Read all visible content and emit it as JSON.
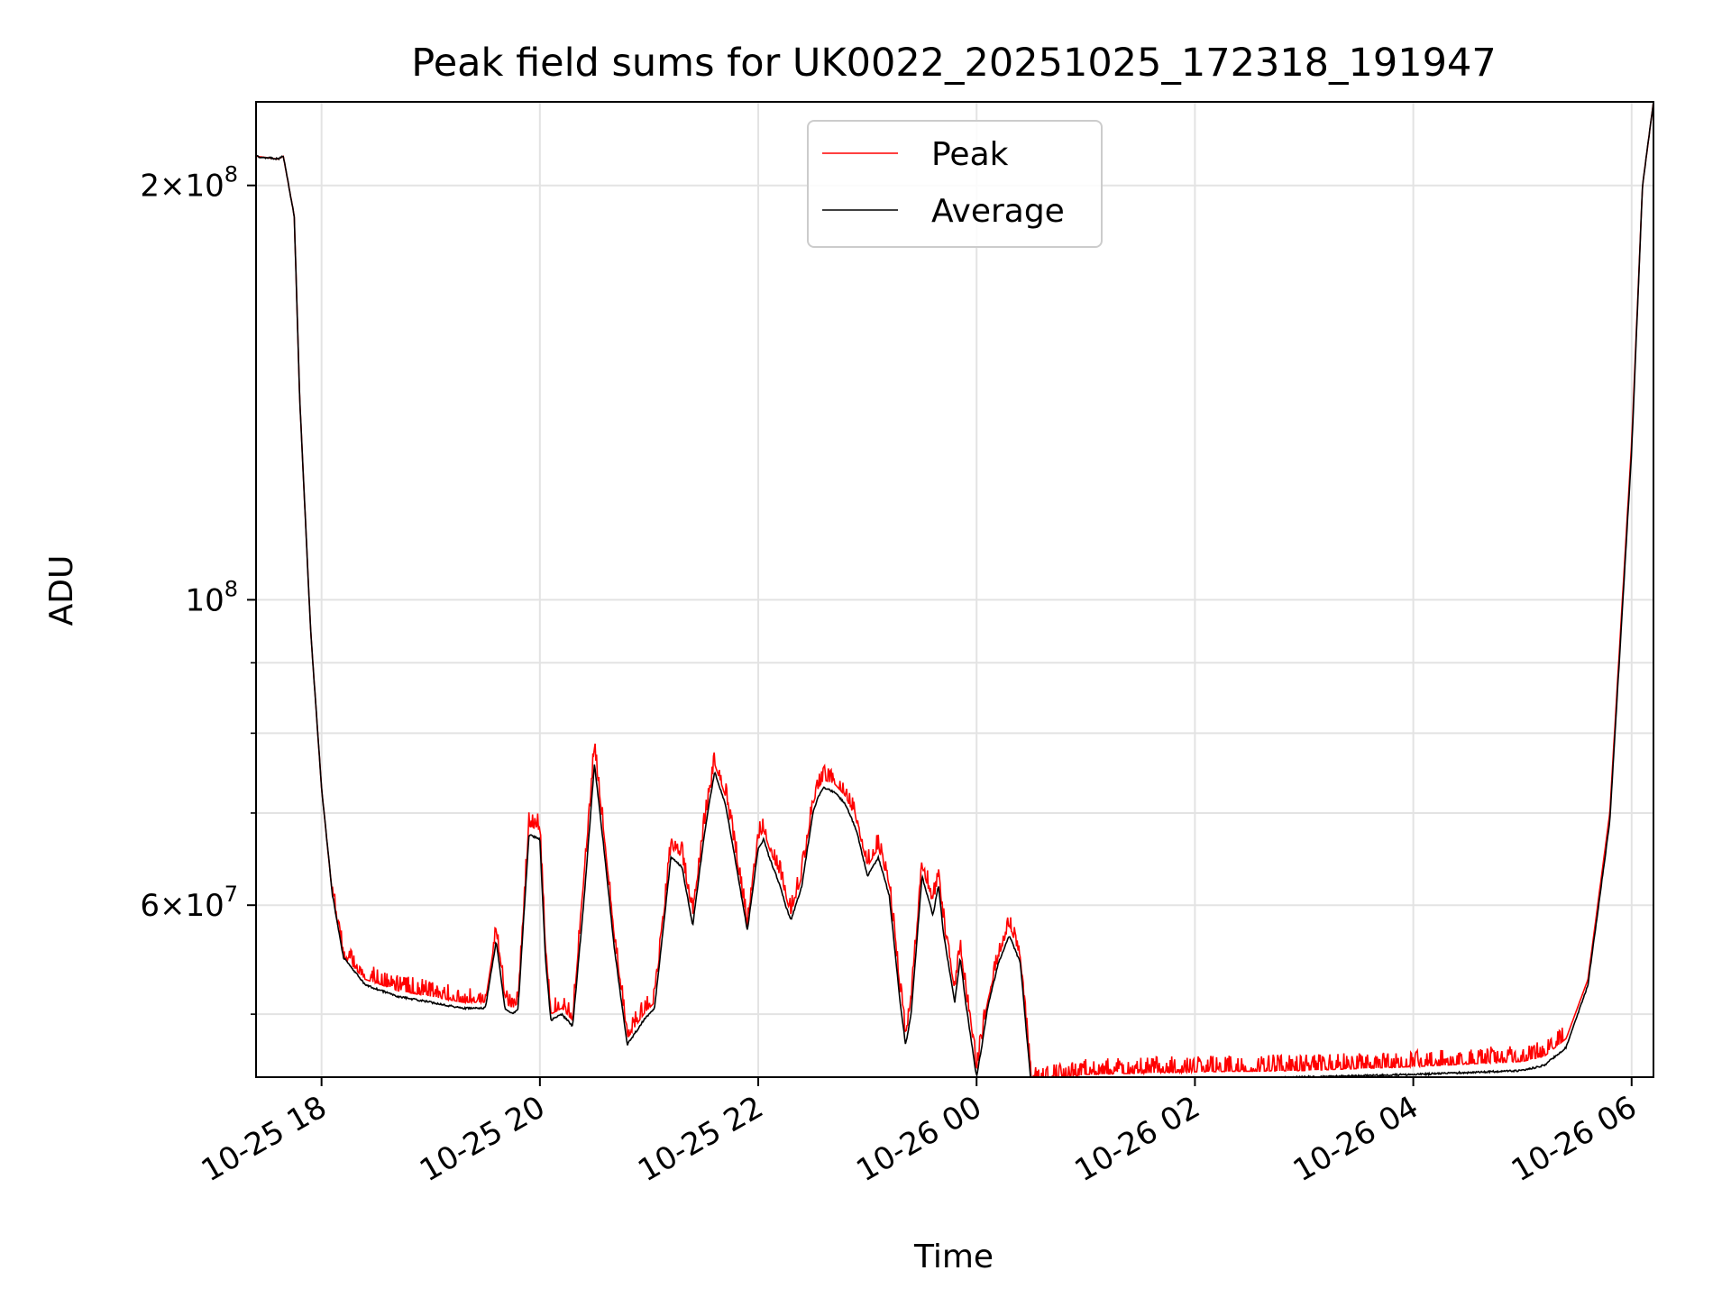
{
  "chart_data": {
    "type": "line",
    "title": "Peak field sums for UK0022_20251025_172318_191947",
    "xlabel": "Time",
    "ylabel": "ADU",
    "yscale": "log",
    "ylim": [
      45000000,
      230000000
    ],
    "x_range_hours": [
      17.4,
      30.2
    ],
    "grid": true,
    "legend_position": "top-center",
    "x_ticks": [
      {
        "hour": 18,
        "label": "10-25 18"
      },
      {
        "hour": 20,
        "label": "10-25 20"
      },
      {
        "hour": 22,
        "label": "10-25 22"
      },
      {
        "hour": 24,
        "label": "10-26 00"
      },
      {
        "hour": 26,
        "label": "10-26 02"
      },
      {
        "hour": 28,
        "label": "10-26 04"
      },
      {
        "hour": 30,
        "label": "10-26 06"
      }
    ],
    "y_major_ticks": [
      {
        "value": 60000000,
        "base": "6×10",
        "exp": "7"
      },
      {
        "value": 100000000,
        "base": "10",
        "exp": "8"
      },
      {
        "value": 200000000,
        "base": "2×10",
        "exp": "8"
      }
    ],
    "y_minor_ticks": [
      50000000,
      70000000,
      80000000,
      90000000
    ],
    "series": [
      {
        "name": "Peak",
        "color": "#ff0000",
        "noise_above_average": true,
        "x_hours": [
          17.4,
          17.6,
          17.65,
          17.75,
          17.8,
          17.9,
          18.0,
          18.1,
          18.2,
          18.4,
          18.7,
          19.0,
          19.3,
          19.5,
          19.6,
          19.68,
          19.75,
          19.8,
          19.9,
          20.0,
          20.05,
          20.1,
          20.2,
          20.3,
          20.4,
          20.5,
          20.6,
          20.68,
          20.8,
          20.95,
          21.05,
          21.2,
          21.3,
          21.4,
          21.5,
          21.55,
          21.6,
          21.7,
          21.8,
          21.9,
          22.0,
          22.05,
          22.1,
          22.2,
          22.25,
          22.3,
          22.4,
          22.5,
          22.55,
          22.6,
          22.7,
          22.8,
          22.9,
          23.0,
          23.1,
          23.2,
          23.3,
          23.35,
          23.4,
          23.5,
          23.6,
          23.65,
          23.7,
          23.8,
          23.85,
          23.9,
          24.0,
          24.05,
          24.1,
          24.2,
          24.3,
          24.4,
          24.5,
          24.6,
          24.7,
          24.8,
          25.0,
          26.0,
          27.0,
          28.0,
          29.0,
          29.2,
          29.4,
          29.6,
          29.8,
          30.0,
          30.1,
          30.2
        ],
        "values": [
          210000000,
          209000000,
          210000000,
          190000000,
          140000000,
          95000000,
          73000000,
          61000000,
          55000000,
          53000000,
          52000000,
          51500000,
          51000000,
          51000000,
          57500000,
          51000000,
          50500000,
          51000000,
          68500000,
          68000000,
          56000000,
          50000000,
          50500000,
          49500000,
          62000000,
          78000000,
          66000000,
          57000000,
          48000000,
          50000000,
          51000000,
          66000000,
          65000000,
          59000000,
          68000000,
          72000000,
          76000000,
          72000000,
          65000000,
          58000000,
          67000000,
          68000000,
          66000000,
          63000000,
          61000000,
          59000000,
          63000000,
          71000000,
          73000000,
          74000000,
          73500000,
          72000000,
          69000000,
          64000000,
          66000000,
          62000000,
          52000000,
          48000000,
          51000000,
          64000000,
          60000000,
          63000000,
          58000000,
          52000000,
          56000000,
          52000000,
          45500000,
          48000000,
          51000000,
          55000000,
          58000000,
          55000000,
          44700000,
          44600000,
          44800000,
          44900000,
          45200000,
          45400000,
          45500000,
          45800000,
          46200000,
          46600000,
          48000000,
          53000000,
          70000000,
          130000000,
          200000000,
          230000000
        ]
      },
      {
        "name": "Average",
        "color": "#000000",
        "x_hours": [
          17.4,
          17.6,
          17.65,
          17.75,
          17.8,
          17.9,
          18.0,
          18.1,
          18.2,
          18.4,
          18.7,
          19.0,
          19.3,
          19.5,
          19.6,
          19.68,
          19.75,
          19.8,
          19.9,
          20.0,
          20.05,
          20.1,
          20.2,
          20.3,
          20.4,
          20.5,
          20.6,
          20.68,
          20.8,
          20.95,
          21.05,
          21.2,
          21.3,
          21.4,
          21.5,
          21.55,
          21.6,
          21.7,
          21.8,
          21.9,
          22.0,
          22.05,
          22.1,
          22.2,
          22.25,
          22.3,
          22.4,
          22.5,
          22.55,
          22.6,
          22.7,
          22.8,
          22.9,
          23.0,
          23.1,
          23.2,
          23.3,
          23.35,
          23.4,
          23.5,
          23.6,
          23.65,
          23.7,
          23.8,
          23.85,
          23.9,
          24.0,
          24.05,
          24.1,
          24.2,
          24.3,
          24.4,
          24.5,
          24.6,
          24.7,
          24.8,
          25.0,
          26.0,
          27.0,
          28.0,
          29.0,
          29.2,
          29.4,
          29.6,
          29.8,
          30.0,
          30.1,
          30.2
        ],
        "values": [
          210000000,
          209000000,
          210000000,
          190000000,
          140000000,
          95000000,
          73000000,
          61000000,
          55000000,
          52500000,
          51500000,
          51000000,
          50500000,
          50500000,
          56500000,
          50500000,
          50000000,
          50500000,
          67500000,
          67000000,
          55000000,
          49500000,
          50000000,
          49000000,
          60000000,
          76000000,
          64500000,
          56000000,
          47500000,
          49500000,
          50500000,
          65000000,
          64000000,
          58000000,
          67000000,
          71000000,
          75000000,
          71000000,
          64000000,
          57500000,
          66000000,
          67000000,
          65000000,
          62000000,
          60000000,
          58500000,
          62000000,
          70000000,
          72000000,
          73000000,
          72500000,
          71000000,
          68000000,
          63000000,
          65000000,
          61000000,
          51000000,
          47500000,
          50000000,
          63000000,
          59000000,
          62000000,
          57000000,
          51000000,
          55000000,
          51000000,
          45000000,
          47500000,
          50500000,
          54500000,
          57000000,
          54500000,
          44400000,
          44300000,
          44400000,
          44500000,
          44700000,
          44800000,
          45000000,
          45200000,
          45500000,
          45900000,
          47300000,
          52500000,
          69000000,
          128000000,
          200000000,
          230000000
        ]
      }
    ]
  }
}
